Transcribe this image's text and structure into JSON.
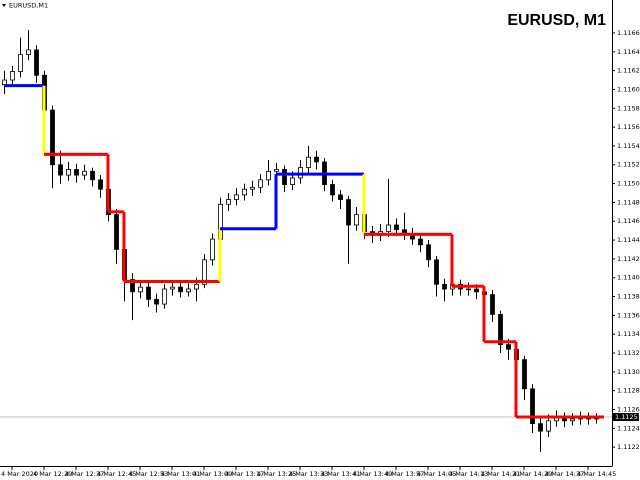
{
  "chart_data": {
    "type": "candlestick",
    "title": "EURUSD, M1",
    "symbol_label": "EURUSD,M1",
    "ylim": [
      1.11205,
      1.117
    ],
    "yticks": [
      1.11225,
      1.11245,
      1.11265,
      1.11285,
      1.11305,
      1.11325,
      1.11345,
      1.11365,
      1.11385,
      1.11405,
      1.11425,
      1.11445,
      1.11465,
      1.11485,
      1.11505,
      1.11525,
      1.11545,
      1.11565,
      1.11585,
      1.11605,
      1.11625,
      1.11645,
      1.11665
    ],
    "xticks": [
      {
        "value": 1,
        "label": "4 Mar 2020"
      },
      {
        "value": 5,
        "label": "4 Mar 12:29"
      },
      {
        "value": 9,
        "label": "4 Mar 12:37"
      },
      {
        "value": 13,
        "label": "4 Mar 12:45"
      },
      {
        "value": 17,
        "label": "4 Mar 12:53"
      },
      {
        "value": 21,
        "label": "4 Mar 13:01"
      },
      {
        "value": 25,
        "label": "4 Mar 13:09"
      },
      {
        "value": 29,
        "label": "4 Mar 13:17"
      },
      {
        "value": 33,
        "label": "4 Mar 13:25"
      },
      {
        "value": 37,
        "label": "4 Mar 13:33"
      },
      {
        "value": 41,
        "label": "4 Mar 13:41"
      },
      {
        "value": 45,
        "label": "4 Mar 13:49"
      },
      {
        "value": 49,
        "label": "4 Mar 13:57"
      },
      {
        "value": 53,
        "label": "4 Mar 14:05"
      },
      {
        "value": 57,
        "label": "4 Mar 14:13"
      },
      {
        "value": 61,
        "label": "4 Mar 14:21"
      },
      {
        "value": 65,
        "label": "4 Mar 14:29"
      },
      {
        "value": 69,
        "label": "4 Mar 14:37"
      },
      {
        "value": 73,
        "label": "4 Mar 14:45"
      }
    ],
    "bull_color": "#ffffff",
    "bear_color": "#000000",
    "ohlc": [
      [
        1.1161,
        1.11625,
        1.116,
        1.11615
      ],
      [
        1.11615,
        1.1163,
        1.11608,
        1.11624
      ],
      [
        1.11624,
        1.1166,
        1.11618,
        1.11642
      ],
      [
        1.11642,
        1.11668,
        1.11636,
        1.11647
      ],
      [
        1.11647,
        1.11652,
        1.11612,
        1.1162
      ],
      [
        1.1162,
        1.11625,
        1.1156,
        1.11583
      ],
      [
        1.11583,
        1.11588,
        1.115,
        1.11525
      ],
      [
        1.11525,
        1.1154,
        1.11505,
        1.11514
      ],
      [
        1.11514,
        1.11528,
        1.11508,
        1.1152
      ],
      [
        1.1152,
        1.11526,
        1.11506,
        1.11514
      ],
      [
        1.11514,
        1.11525,
        1.11509,
        1.11518
      ],
      [
        1.11518,
        1.11522,
        1.11502,
        1.11509
      ],
      [
        1.11509,
        1.11514,
        1.1149,
        1.11499
      ],
      [
        1.11499,
        1.11503,
        1.11465,
        1.11472
      ],
      [
        1.11472,
        1.11478,
        1.1142,
        1.11435
      ],
      [
        1.11435,
        1.1144,
        1.1138,
        1.11403
      ],
      [
        1.11403,
        1.1141,
        1.1136,
        1.1139
      ],
      [
        1.1139,
        1.11402,
        1.11383,
        1.11395
      ],
      [
        1.11395,
        1.114,
        1.11374,
        1.11382
      ],
      [
        1.11382,
        1.11388,
        1.11368,
        1.11377
      ],
      [
        1.11377,
        1.11398,
        1.11372,
        1.11393
      ],
      [
        1.11393,
        1.11401,
        1.11386,
        1.11395
      ],
      [
        1.11395,
        1.114,
        1.11384,
        1.1139
      ],
      [
        1.1139,
        1.11399,
        1.11385,
        1.11393
      ],
      [
        1.11393,
        1.11405,
        1.1138,
        1.11398
      ],
      [
        1.11398,
        1.1143,
        1.11394,
        1.11424
      ],
      [
        1.11424,
        1.11452,
        1.11418,
        1.11446
      ],
      [
        1.11446,
        1.1149,
        1.1144,
        1.11483
      ],
      [
        1.11483,
        1.11495,
        1.11476,
        1.11488
      ],
      [
        1.11488,
        1.115,
        1.11482,
        1.11493
      ],
      [
        1.11493,
        1.11505,
        1.11487,
        1.11499
      ],
      [
        1.11499,
        1.11508,
        1.11492,
        1.11501
      ],
      [
        1.11501,
        1.11515,
        1.11495,
        1.11509
      ],
      [
        1.11509,
        1.1153,
        1.11503,
        1.11518
      ],
      [
        1.11518,
        1.11527,
        1.1151,
        1.1152
      ],
      [
        1.1152,
        1.11524,
        1.11496,
        1.11504
      ],
      [
        1.11504,
        1.11518,
        1.11498,
        1.11511
      ],
      [
        1.11511,
        1.1153,
        1.11505,
        1.11522
      ],
      [
        1.11522,
        1.11545,
        1.11516,
        1.11533
      ],
      [
        1.11533,
        1.1154,
        1.1152,
        1.11528
      ],
      [
        1.11528,
        1.11532,
        1.11497,
        1.11504
      ],
      [
        1.11504,
        1.11509,
        1.11486,
        1.11493
      ],
      [
        1.11493,
        1.11498,
        1.11478,
        1.11488
      ],
      [
        1.11488,
        1.11492,
        1.1142,
        1.11461
      ],
      [
        1.11461,
        1.1148,
        1.11455,
        1.11472
      ],
      [
        1.11472,
        1.11476,
        1.11446,
        1.11454
      ],
      [
        1.11454,
        1.1146,
        1.11442,
        1.1145
      ],
      [
        1.1145,
        1.11462,
        1.11444,
        1.11454
      ],
      [
        1.11454,
        1.1151,
        1.11448,
        1.11461
      ],
      [
        1.11461,
        1.11468,
        1.11449,
        1.11456
      ],
      [
        1.11456,
        1.11474,
        1.11445,
        1.11451
      ],
      [
        1.11451,
        1.11458,
        1.1144,
        1.11446
      ],
      [
        1.11446,
        1.11452,
        1.11432,
        1.1144
      ],
      [
        1.1144,
        1.11445,
        1.11416,
        1.11424
      ],
      [
        1.11424,
        1.11428,
        1.11385,
        1.11398
      ],
      [
        1.11398,
        1.11404,
        1.1138,
        1.11393
      ],
      [
        1.11393,
        1.11405,
        1.11386,
        1.11398
      ],
      [
        1.11398,
        1.11403,
        1.11386,
        1.11393
      ],
      [
        1.11393,
        1.114,
        1.11386,
        1.11393
      ],
      [
        1.11393,
        1.11398,
        1.11382,
        1.1139
      ],
      [
        1.1139,
        1.11395,
        1.11378,
        1.11387
      ],
      [
        1.11387,
        1.11392,
        1.11358,
        1.11366
      ],
      [
        1.11366,
        1.1137,
        1.11325,
        1.11334
      ],
      [
        1.11334,
        1.1134,
        1.11318,
        1.11329
      ],
      [
        1.11329,
        1.11335,
        1.11308,
        1.11318
      ],
      [
        1.11318,
        1.11322,
        1.11275,
        1.11287
      ],
      [
        1.11287,
        1.11292,
        1.1124,
        1.1125
      ],
      [
        1.1125,
        1.11256,
        1.1122,
        1.11242
      ],
      [
        1.11242,
        1.1126,
        1.11236,
        1.11253
      ],
      [
        1.11253,
        1.11264,
        1.11247,
        1.11257
      ],
      [
        1.11257,
        1.11262,
        1.11246,
        1.11253
      ],
      [
        1.11253,
        1.11261,
        1.11248,
        1.11255
      ],
      [
        1.11255,
        1.11263,
        1.11249,
        1.11257
      ],
      [
        1.11257,
        1.11262,
        1.11249,
        1.11255
      ],
      [
        1.11255,
        1.11261,
        1.1125,
        1.11256
      ]
    ],
    "change_color": "#ffff00",
    "steps": [
      {
        "start": 0,
        "end": 5,
        "value": 1.11609,
        "color": "#0000ff"
      },
      {
        "start": 5,
        "end": 13,
        "value": 1.11536,
        "color": "#ff0000"
      },
      {
        "start": 13,
        "end": 15,
        "value": 1.11475,
        "color": "#ff0000"
      },
      {
        "start": 15,
        "end": 27,
        "value": 1.11401,
        "color": "#ff0000"
      },
      {
        "start": 27,
        "end": 34,
        "value": 1.11457,
        "color": "#0000ff"
      },
      {
        "start": 34,
        "end": 45,
        "value": 1.11515,
        "color": "#0000ff"
      },
      {
        "start": 45,
        "end": 56,
        "value": 1.11451,
        "color": "#ff0000"
      },
      {
        "start": 56,
        "end": 60,
        "value": 1.11396,
        "color": "#ff0000"
      },
      {
        "start": 60,
        "end": 64,
        "value": 1.11337,
        "color": "#ff0000"
      },
      {
        "start": 64,
        "end": 75,
        "value": 1.11257,
        "color": "#ff0000"
      }
    ],
    "current_price": 1.11257
  }
}
